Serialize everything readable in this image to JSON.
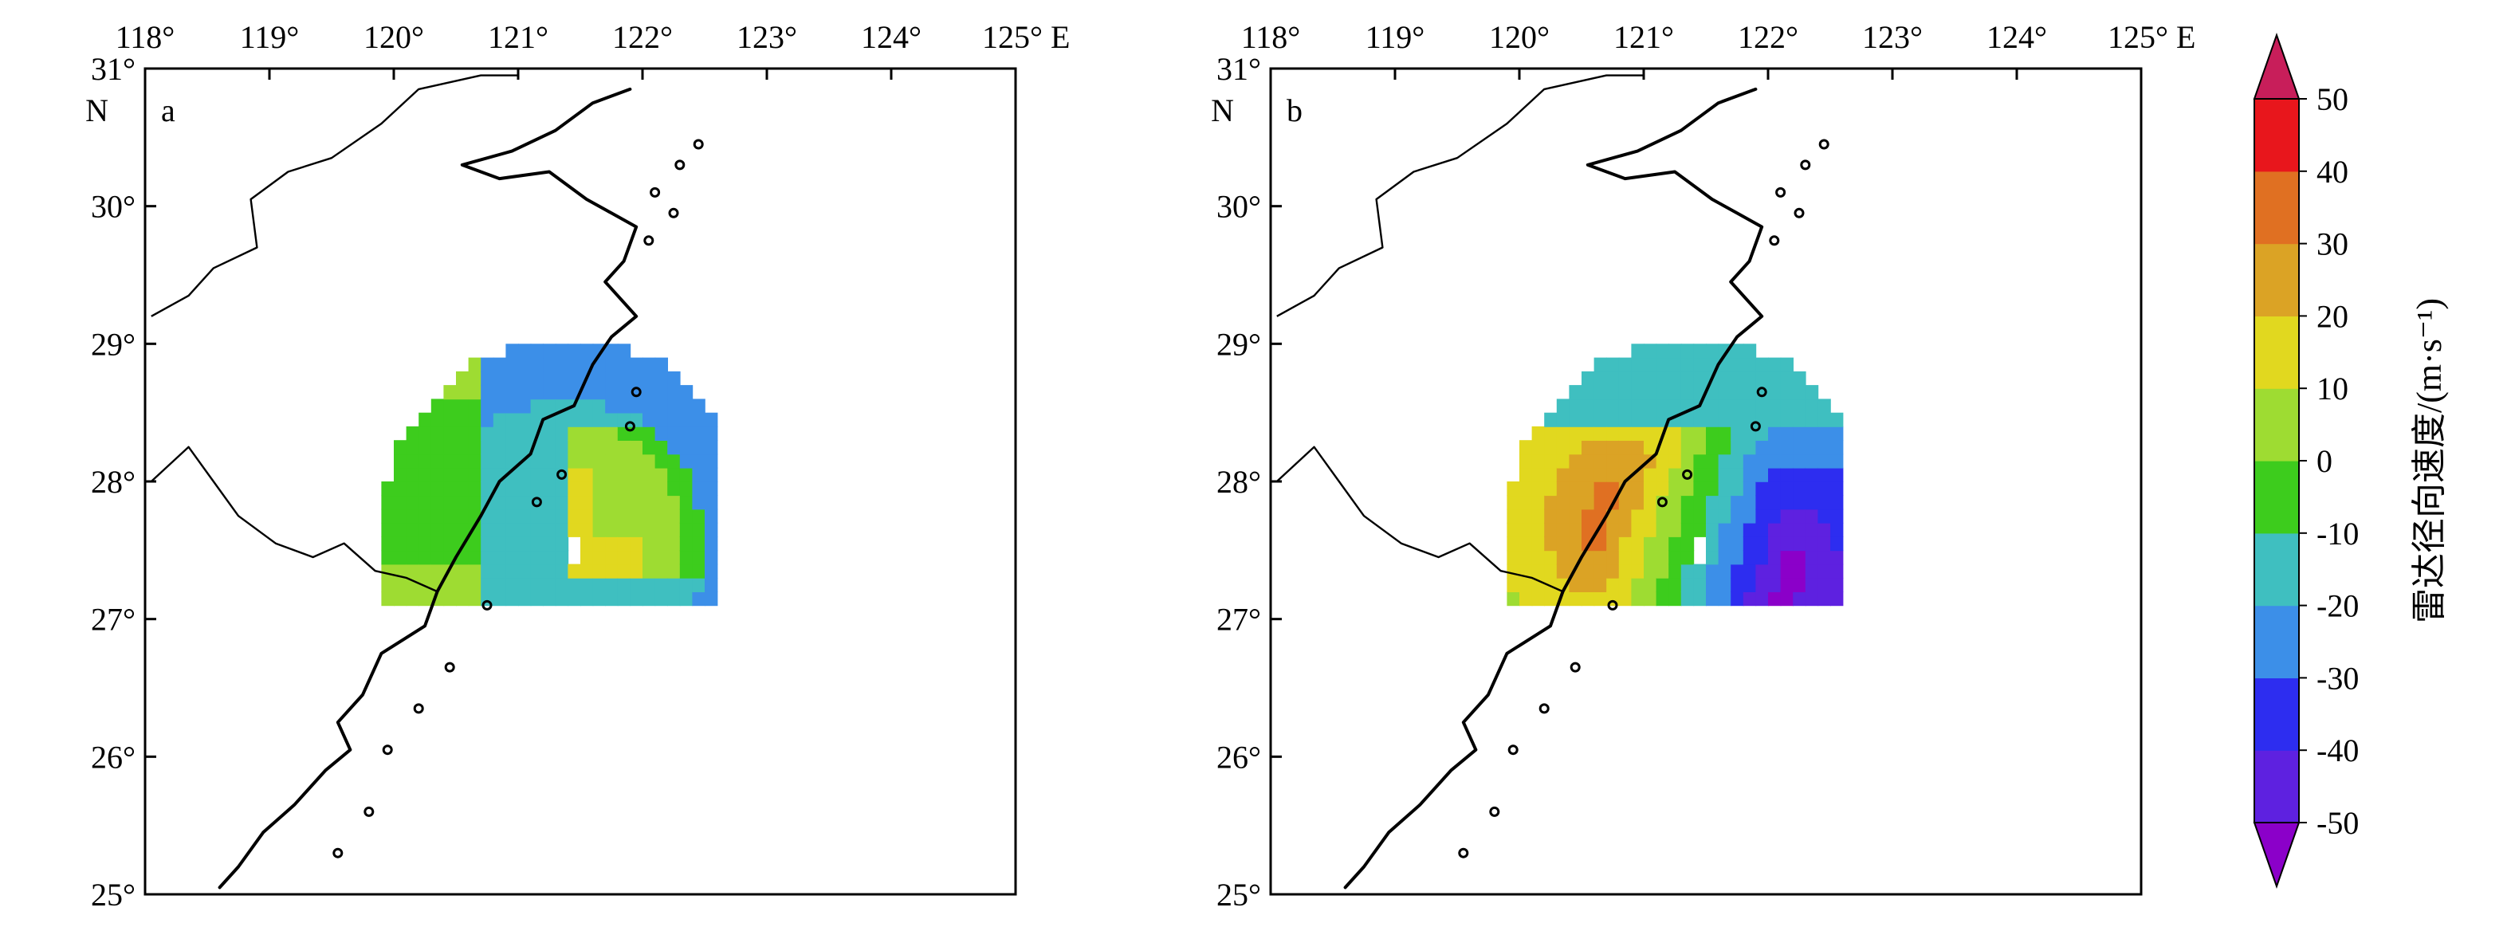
{
  "map_panels": [
    {
      "label": "a",
      "lon_ticks": [
        "118°",
        "119°",
        "120°",
        "121°",
        "122°",
        "123°",
        "124°",
        "125° E"
      ],
      "lat_ticks": [
        "31°",
        "30°",
        "29°",
        "28°",
        "27°",
        "26°",
        "25°"
      ],
      "lat_unit": "N"
    },
    {
      "label": "b",
      "lon_ticks": [
        "118°",
        "119°",
        "120°",
        "121°",
        "122°",
        "123°",
        "124°",
        "125° E"
      ],
      "lat_ticks": [
        "31°",
        "30°",
        "29°",
        "28°",
        "27°",
        "26°",
        "25°"
      ],
      "lat_unit": "N"
    }
  ],
  "chart_data": {
    "type": "heatmap",
    "lon_range": [
      118,
      125
    ],
    "lat_range": [
      25,
      31
    ],
    "radar_site": {
      "lon": 121.4,
      "lat": 27.5
    },
    "colorbar": {
      "title": "雷达径向速度/(m·s⁻¹)",
      "levels": [
        -50,
        -40,
        -30,
        -20,
        -10,
        0,
        10,
        20,
        30,
        40,
        50
      ],
      "labels": [
        "50",
        "40",
        "30",
        "20",
        "10",
        "0",
        "-10",
        "-20",
        "-30",
        "-40",
        "-50"
      ],
      "extend": "both",
      "colors": [
        "#8B00C9",
        "#5E21E0",
        "#2D2DF0",
        "#3C8FE8",
        "#3FBFC0",
        "#3DCC1D",
        "#9EDC32",
        "#E1D81F",
        "#DBA325",
        "#E07022",
        "#E8161C"
      ],
      "over_color": "#C81E5A",
      "under_color": "#8B00C9"
    }
  }
}
